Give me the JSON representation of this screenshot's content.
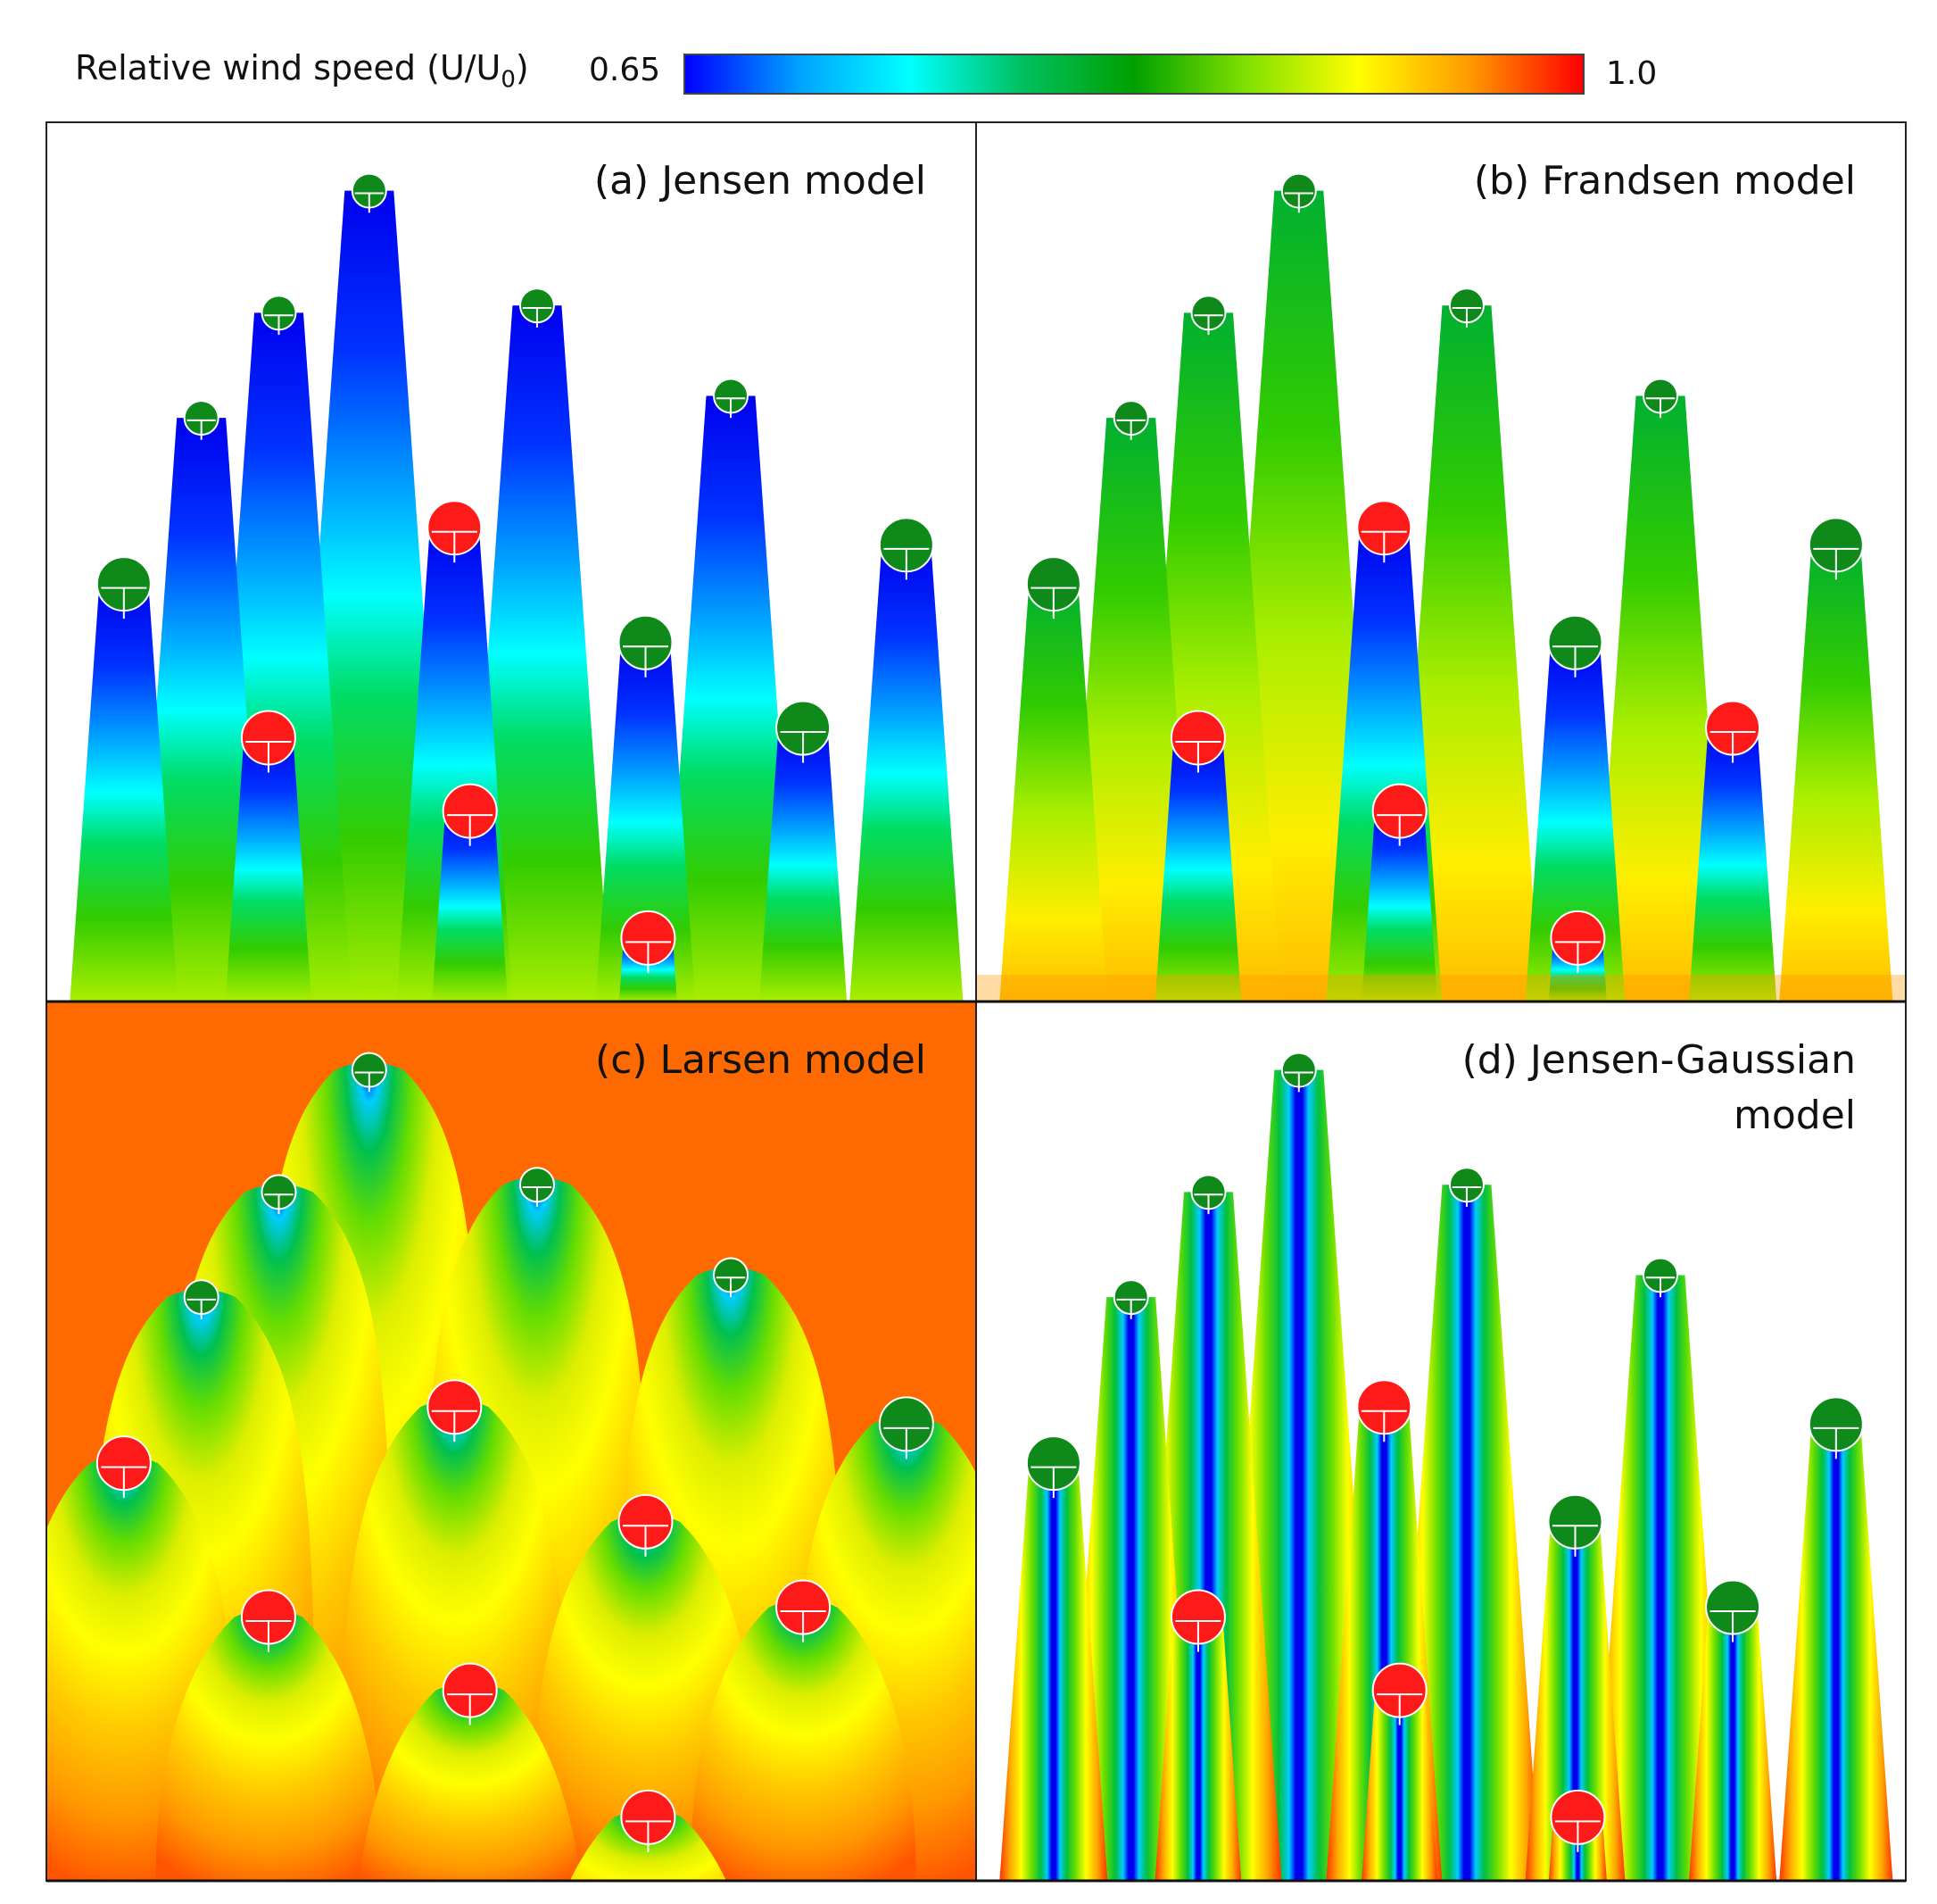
{
  "colorbar": {
    "label_main": "Relative wind speed (U/U",
    "label_sub": "0",
    "label_close": ")",
    "min_label": "0.65",
    "max_label": "1.0",
    "min": 0.65,
    "max": 1.0,
    "colors": [
      "#0000ff",
      "#00a0ff",
      "#00ffff",
      "#00c060",
      "#00a000",
      "#80e000",
      "#ffff00",
      "#ff9900",
      "#ff0000"
    ]
  },
  "chart_data": [
    {
      "type": "heatmap",
      "title": "(a) Jensen model",
      "title_lines": [
        "(a) Jensen model"
      ],
      "value": "relative wind speed U/U0",
      "turbines": [
        {
          "x": 3,
          "y": 17.1,
          "color": "green"
        },
        {
          "x": 6,
          "y": 23.9,
          "color": "green"
        },
        {
          "x": 9,
          "y": 28.2,
          "color": "green"
        },
        {
          "x": 12.5,
          "y": 33.2,
          "color": "green"
        },
        {
          "x": 19,
          "y": 28.5,
          "color": "green"
        },
        {
          "x": 26.5,
          "y": 24.8,
          "color": "green"
        },
        {
          "x": 23.2,
          "y": 14.7,
          "color": "green"
        },
        {
          "x": 29.3,
          "y": 11.2,
          "color": "green"
        },
        {
          "x": 33.3,
          "y": 18.7,
          "color": "green"
        },
        {
          "x": 15.8,
          "y": 19.4,
          "color": "red"
        },
        {
          "x": 8.6,
          "y": 10.8,
          "color": "red"
        },
        {
          "x": 16.4,
          "y": 7.8,
          "color": "red"
        },
        {
          "x": 23.3,
          "y": 2.6,
          "color": "red"
        }
      ],
      "wakes": [
        {
          "x": 3,
          "y": 17.1,
          "mode": "jensen",
          "core": "blue"
        },
        {
          "x": 6,
          "y": 23.9,
          "mode": "jensen",
          "core": "blue"
        },
        {
          "x": 9,
          "y": 28.2,
          "mode": "jensen",
          "core": "blue"
        },
        {
          "x": 12.5,
          "y": 33.2,
          "mode": "jensen",
          "core": "blue"
        },
        {
          "x": 19,
          "y": 28.5,
          "mode": "jensen",
          "core": "blue"
        },
        {
          "x": 26.5,
          "y": 24.8,
          "mode": "jensen",
          "core": "blue"
        },
        {
          "x": 33.3,
          "y": 18.7,
          "mode": "jensen",
          "core": "blue"
        },
        {
          "x": 23.2,
          "y": 14.7,
          "mode": "jensen",
          "core": "blue"
        },
        {
          "x": 15.8,
          "y": 19.4,
          "mode": "jensen",
          "core": "blue"
        },
        {
          "x": 8.6,
          "y": 10.8,
          "mode": "jensen",
          "core": "blue"
        },
        {
          "x": 29.3,
          "y": 11.2,
          "mode": "jensen",
          "core": "blue"
        },
        {
          "x": 16.4,
          "y": 7.8,
          "mode": "jensen",
          "core": "blue"
        },
        {
          "x": 23.3,
          "y": 2.6,
          "mode": "jensen",
          "core": "blue"
        }
      ]
    },
    {
      "type": "heatmap",
      "title": "(b) Frandsen model",
      "title_lines": [
        "(b) Frandsen model"
      ],
      "value": "relative wind speed U/U0",
      "turbines": [
        {
          "x": 3,
          "y": 17.1,
          "color": "green"
        },
        {
          "x": 6,
          "y": 23.9,
          "color": "green"
        },
        {
          "x": 9,
          "y": 28.2,
          "color": "green"
        },
        {
          "x": 12.5,
          "y": 33.2,
          "color": "green"
        },
        {
          "x": 19,
          "y": 28.5,
          "color": "green"
        },
        {
          "x": 26.5,
          "y": 24.8,
          "color": "green"
        },
        {
          "x": 23.2,
          "y": 14.7,
          "color": "green"
        },
        {
          "x": 33.3,
          "y": 18.7,
          "color": "green"
        },
        {
          "x": 15.8,
          "y": 19.4,
          "color": "red"
        },
        {
          "x": 8.6,
          "y": 10.8,
          "color": "red"
        },
        {
          "x": 29.3,
          "y": 11.2,
          "color": "red"
        },
        {
          "x": 16.4,
          "y": 7.8,
          "color": "red"
        },
        {
          "x": 23.3,
          "y": 2.6,
          "color": "red"
        }
      ],
      "wakes": [
        {
          "x": 3,
          "y": 17.1,
          "mode": "jensen",
          "core": "green"
        },
        {
          "x": 6,
          "y": 23.9,
          "mode": "jensen",
          "core": "green"
        },
        {
          "x": 9,
          "y": 28.2,
          "mode": "jensen",
          "core": "green"
        },
        {
          "x": 12.5,
          "y": 33.2,
          "mode": "jensen",
          "core": "green"
        },
        {
          "x": 19,
          "y": 28.5,
          "mode": "jensen",
          "core": "green"
        },
        {
          "x": 26.5,
          "y": 24.8,
          "mode": "jensen",
          "core": "green"
        },
        {
          "x": 33.3,
          "y": 18.7,
          "mode": "jensen",
          "core": "green"
        },
        {
          "x": 23.2,
          "y": 14.7,
          "mode": "jensen",
          "core": "blue"
        },
        {
          "x": 15.8,
          "y": 19.4,
          "mode": "jensen",
          "core": "blue"
        },
        {
          "x": 8.6,
          "y": 10.8,
          "mode": "jensen",
          "core": "blue"
        },
        {
          "x": 29.3,
          "y": 11.2,
          "mode": "jensen",
          "core": "blue"
        },
        {
          "x": 16.4,
          "y": 7.8,
          "mode": "jensen",
          "core": "blue"
        },
        {
          "x": 23.3,
          "y": 2.6,
          "mode": "jensen",
          "core": "blue"
        }
      ]
    },
    {
      "type": "heatmap",
      "title": "(c) Larsen model",
      "title_lines": [
        "(c) Larsen model"
      ],
      "value": "relative wind speed U/U0",
      "turbines": [
        {
          "x": 3,
          "y": 17.1,
          "color": "red"
        },
        {
          "x": 6,
          "y": 23.9,
          "color": "green"
        },
        {
          "x": 9,
          "y": 28.2,
          "color": "green"
        },
        {
          "x": 12.5,
          "y": 33.2,
          "color": "green"
        },
        {
          "x": 19,
          "y": 28.5,
          "color": "green"
        },
        {
          "x": 26.5,
          "y": 24.8,
          "color": "green"
        },
        {
          "x": 33.3,
          "y": 18.7,
          "color": "green"
        },
        {
          "x": 15.8,
          "y": 19.4,
          "color": "red"
        },
        {
          "x": 23.2,
          "y": 14.7,
          "color": "red"
        },
        {
          "x": 8.6,
          "y": 10.8,
          "color": "red"
        },
        {
          "x": 29.3,
          "y": 11.2,
          "color": "red"
        },
        {
          "x": 16.4,
          "y": 7.8,
          "color": "red"
        },
        {
          "x": 23.3,
          "y": 2.6,
          "color": "red"
        }
      ],
      "wakes": [
        {
          "x": 3,
          "y": 17.1,
          "mode": "larsen"
        },
        {
          "x": 6,
          "y": 23.9,
          "mode": "larsen"
        },
        {
          "x": 9,
          "y": 28.2,
          "mode": "larsen"
        },
        {
          "x": 12.5,
          "y": 33.2,
          "mode": "larsen"
        },
        {
          "x": 19,
          "y": 28.5,
          "mode": "larsen"
        },
        {
          "x": 26.5,
          "y": 24.8,
          "mode": "larsen"
        },
        {
          "x": 33.3,
          "y": 18.7,
          "mode": "larsen"
        },
        {
          "x": 15.8,
          "y": 19.4,
          "mode": "larsen"
        },
        {
          "x": 23.2,
          "y": 14.7,
          "mode": "larsen"
        },
        {
          "x": 8.6,
          "y": 10.8,
          "mode": "larsen"
        },
        {
          "x": 29.3,
          "y": 11.2,
          "mode": "larsen"
        },
        {
          "x": 16.4,
          "y": 7.8,
          "mode": "larsen"
        },
        {
          "x": 23.3,
          "y": 2.6,
          "mode": "larsen"
        }
      ]
    },
    {
      "type": "heatmap",
      "title": "(d) Jensen-Gaussian model",
      "title_lines": [
        "(d) Jensen-Gaussian",
        "model"
      ],
      "value": "relative wind speed U/U0",
      "turbines": [
        {
          "x": 3,
          "y": 17.1,
          "color": "green"
        },
        {
          "x": 6,
          "y": 23.9,
          "color": "green"
        },
        {
          "x": 9,
          "y": 28.2,
          "color": "green"
        },
        {
          "x": 12.5,
          "y": 33.2,
          "color": "green"
        },
        {
          "x": 19,
          "y": 28.5,
          "color": "green"
        },
        {
          "x": 26.5,
          "y": 24.8,
          "color": "green"
        },
        {
          "x": 23.2,
          "y": 14.7,
          "color": "green"
        },
        {
          "x": 29.3,
          "y": 11.2,
          "color": "green"
        },
        {
          "x": 33.3,
          "y": 18.7,
          "color": "green"
        },
        {
          "x": 15.8,
          "y": 19.4,
          "color": "red"
        },
        {
          "x": 8.6,
          "y": 10.8,
          "color": "red"
        },
        {
          "x": 16.4,
          "y": 7.8,
          "color": "red"
        },
        {
          "x": 23.3,
          "y": 2.6,
          "color": "red"
        }
      ],
      "wakes": [
        {
          "x": 3,
          "y": 17.1,
          "mode": "gauss"
        },
        {
          "x": 6,
          "y": 23.9,
          "mode": "gauss"
        },
        {
          "x": 9,
          "y": 28.2,
          "mode": "gauss"
        },
        {
          "x": 12.5,
          "y": 33.2,
          "mode": "gauss"
        },
        {
          "x": 19,
          "y": 28.5,
          "mode": "gauss"
        },
        {
          "x": 26.5,
          "y": 24.8,
          "mode": "gauss"
        },
        {
          "x": 33.3,
          "y": 18.7,
          "mode": "gauss"
        },
        {
          "x": 15.8,
          "y": 19.4,
          "mode": "gauss"
        },
        {
          "x": 23.2,
          "y": 14.7,
          "mode": "gauss"
        },
        {
          "x": 8.6,
          "y": 10.8,
          "mode": "gauss"
        },
        {
          "x": 29.3,
          "y": 11.2,
          "mode": "gauss"
        },
        {
          "x": 16.4,
          "y": 7.8,
          "mode": "gauss"
        },
        {
          "x": 23.3,
          "y": 2.6,
          "mode": "gauss"
        }
      ]
    }
  ]
}
